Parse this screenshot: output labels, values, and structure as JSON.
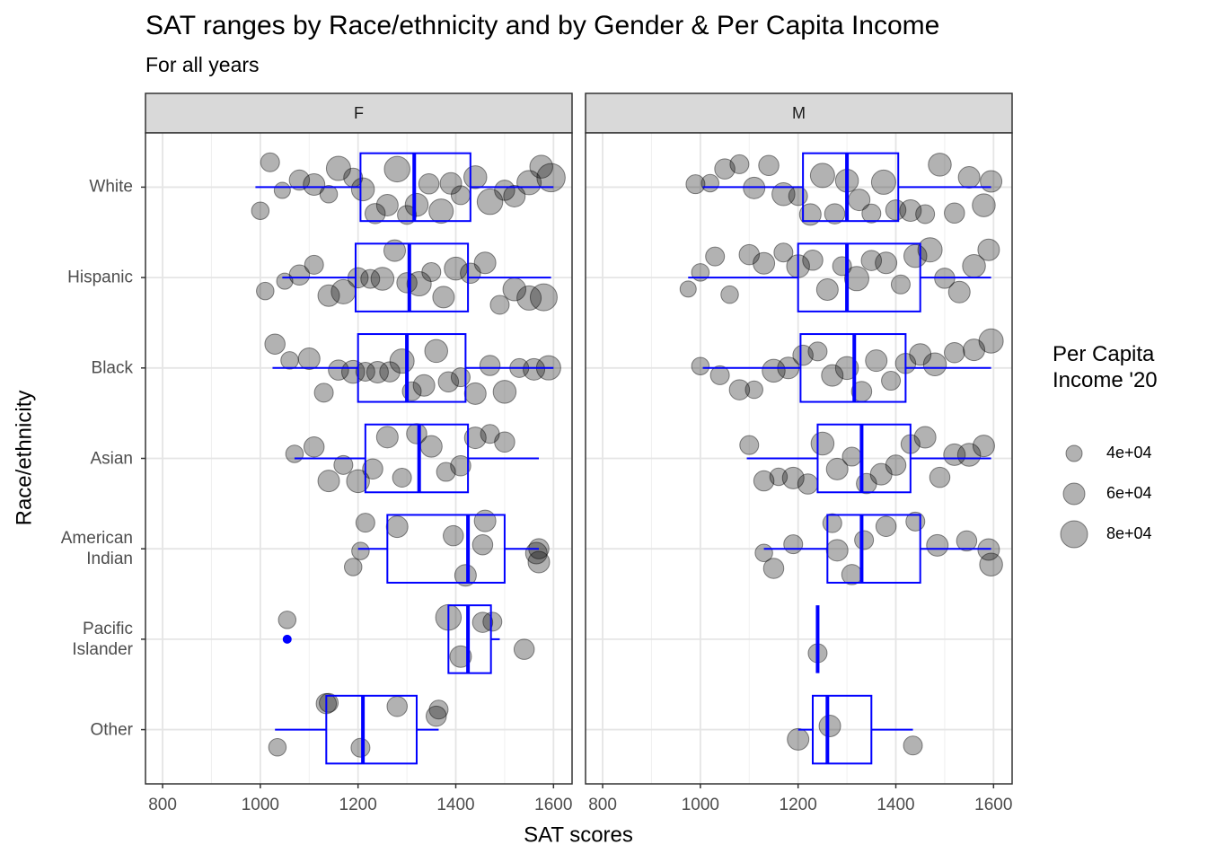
{
  "chart_data": {
    "type": "boxplot",
    "title": "SAT ranges by Race/ethnicity and by Gender & Per Capita Income",
    "subtitle": "For all years",
    "x_label": "SAT scores",
    "y_label": "Race/ethnicity",
    "categories": [
      "White",
      "Hispanic",
      "Black",
      "Asian",
      "American\nIndian",
      "Pacific\nIslander",
      "Other"
    ],
    "xlim": [
      765,
      1638
    ],
    "xticks": [
      800,
      1000,
      1200,
      1400,
      1600
    ],
    "xminor": [
      900,
      1100,
      1300,
      1500
    ],
    "grid": true,
    "box_color": "#0000ff",
    "point_color": "#000000",
    "size_legend_title": "Per Capita\nIncome '20",
    "size_ticks": [
      {
        "value": 40000,
        "label": "4e+04"
      },
      {
        "value": 60000,
        "label": "6e+04"
      },
      {
        "value": 80000,
        "label": "8e+04"
      }
    ],
    "facets": [
      {
        "name": "F",
        "boxes": [
          {
            "low": 990,
            "q1": 1205,
            "median": 1315,
            "q3": 1430,
            "high": 1600,
            "outliers": []
          },
          {
            "low": 1045,
            "q1": 1195,
            "median": 1305,
            "q3": 1425,
            "high": 1595,
            "outliers": []
          },
          {
            "low": 1025,
            "q1": 1200,
            "median": 1300,
            "q3": 1420,
            "high": 1600,
            "outliers": []
          },
          {
            "low": 1070,
            "q1": 1215,
            "median": 1325,
            "q3": 1425,
            "high": 1570,
            "outliers": []
          },
          {
            "low": 1200,
            "q1": 1260,
            "median": 1425,
            "q3": 1500,
            "high": 1570,
            "outliers": []
          },
          {
            "low": 1385,
            "q1": 1385,
            "median": 1425,
            "q3": 1472,
            "high": 1490,
            "outliers": [
              1055
            ]
          },
          {
            "low": 1030,
            "q1": 1135,
            "median": 1210,
            "q3": 1320,
            "high": 1365,
            "outliers": []
          }
        ],
        "points": [
          {
            "x": [
              1000,
              1020,
              1045,
              1080,
              1110,
              1140,
              1160,
              1190,
              1210,
              1235,
              1260,
              1280,
              1300,
              1320,
              1345,
              1370,
              1390,
              1410,
              1440,
              1470,
              1500,
              1520,
              1550,
              1575,
              1595
            ],
            "size": [
              45000,
              50000,
              40000,
              55000,
              60000,
              45000,
              70000,
              50000,
              65000,
              55000,
              60000,
              75000,
              50000,
              65000,
              55000,
              70000,
              60000,
              50000,
              65000,
              75000,
              55000,
              60000,
              70000,
              65000,
              85000
            ]
          },
          {
            "x": [
              1010,
              1050,
              1080,
              1110,
              1140,
              1170,
              1200,
              1225,
              1250,
              1275,
              1300,
              1325,
              1350,
              1375,
              1400,
              1430,
              1460,
              1490,
              1520,
              1550,
              1580
            ],
            "size": [
              45000,
              40000,
              55000,
              50000,
              60000,
              70000,
              55000,
              50000,
              65000,
              60000,
              55000,
              70000,
              50000,
              60000,
              65000,
              55000,
              60000,
              50000,
              65000,
              70000,
              80000
            ]
          },
          {
            "x": [
              1030,
              1060,
              1100,
              1130,
              1160,
              1190,
              1215,
              1240,
              1265,
              1290,
              1310,
              1335,
              1360,
              1385,
              1410,
              1440,
              1470,
              1500,
              1530,
              1560,
              1590
            ],
            "size": [
              55000,
              45000,
              60000,
              50000,
              55000,
              65000,
              50000,
              60000,
              55000,
              70000,
              50000,
              60000,
              65000,
              55000,
              50000,
              60000,
              55000,
              65000,
              50000,
              60000,
              70000
            ]
          },
          {
            "x": [
              1070,
              1110,
              1140,
              1170,
              1200,
              1230,
              1260,
              1290,
              1320,
              1350,
              1380,
              1410,
              1440,
              1470,
              1500
            ],
            "size": [
              45000,
              55000,
              60000,
              50000,
              65000,
              55000,
              60000,
              50000,
              55000,
              60000,
              50000,
              55000,
              60000,
              50000,
              55000
            ]
          },
          {
            "x": [
              1190,
              1205,
              1215,
              1280,
              1395,
              1420,
              1455,
              1460,
              1570,
              1565,
              1570
            ],
            "size": [
              45000,
              45000,
              50000,
              60000,
              55000,
              60000,
              55000,
              60000,
              55000,
              60000,
              60000
            ]
          },
          {
            "x": [
              1055,
              1385,
              1410,
              1455,
              1475,
              1540
            ],
            "size": [
              45000,
              75000,
              60000,
              55000,
              50000,
              55000
            ]
          },
          {
            "x": [
              1035,
              1135,
              1140,
              1205,
              1280,
              1360,
              1365
            ],
            "size": [
              45000,
              55000,
              50000,
              50000,
              55000,
              55000,
              50000
            ]
          }
        ]
      },
      {
        "name": "M",
        "boxes": [
          {
            "low": 1005,
            "q1": 1210,
            "median": 1300,
            "q3": 1405,
            "high": 1595,
            "outliers": []
          },
          {
            "low": 975,
            "q1": 1200,
            "median": 1300,
            "q3": 1450,
            "high": 1595,
            "outliers": []
          },
          {
            "low": 1005,
            "q1": 1205,
            "median": 1315,
            "q3": 1420,
            "high": 1595,
            "outliers": []
          },
          {
            "low": 1095,
            "q1": 1240,
            "median": 1330,
            "q3": 1430,
            "high": 1595,
            "outliers": []
          },
          {
            "low": 1130,
            "q1": 1260,
            "median": 1330,
            "q3": 1450,
            "high": 1595,
            "outliers": []
          },
          {
            "low": 1240,
            "q1": 1240,
            "median": 1240,
            "q3": 1240,
            "high": 1240,
            "outliers": []
          },
          {
            "low": 1200,
            "q1": 1230,
            "median": 1260,
            "q3": 1350,
            "high": 1435,
            "outliers": []
          }
        ],
        "points": [
          {
            "x": [
              990,
              1020,
              1050,
              1080,
              1110,
              1140,
              1170,
              1200,
              1225,
              1250,
              1275,
              1300,
              1325,
              1350,
              1375,
              1400,
              1430,
              1460,
              1490,
              1520,
              1550,
              1580,
              1595
            ],
            "size": [
              50000,
              45000,
              55000,
              50000,
              60000,
              55000,
              65000,
              50000,
              60000,
              70000,
              55000,
              65000,
              60000,
              50000,
              70000,
              55000,
              60000,
              50000,
              65000,
              55000,
              60000,
              65000,
              60000
            ]
          },
          {
            "x": [
              975,
              1000,
              1030,
              1060,
              1100,
              1130,
              1170,
              1200,
              1230,
              1260,
              1290,
              1320,
              1350,
              1380,
              1410,
              1440,
              1470,
              1500,
              1530,
              1560,
              1590
            ],
            "size": [
              40000,
              45000,
              50000,
              45000,
              55000,
              60000,
              50000,
              65000,
              55000,
              60000,
              50000,
              70000,
              55000,
              60000,
              50000,
              65000,
              70000,
              55000,
              60000,
              65000,
              60000
            ]
          },
          {
            "x": [
              1000,
              1040,
              1080,
              1110,
              1150,
              1180,
              1210,
              1240,
              1270,
              1300,
              1330,
              1360,
              1390,
              1420,
              1450,
              1480,
              1520,
              1560,
              1595
            ],
            "size": [
              45000,
              50000,
              55000,
              45000,
              65000,
              60000,
              55000,
              50000,
              60000,
              65000,
              55000,
              60000,
              50000,
              55000,
              60000,
              65000,
              55000,
              60000,
              70000
            ]
          },
          {
            "x": [
              1100,
              1130,
              1160,
              1190,
              1220,
              1250,
              1280,
              1310,
              1340,
              1370,
              1400,
              1430,
              1460,
              1490,
              1520,
              1550,
              1580
            ],
            "size": [
              50000,
              55000,
              45000,
              60000,
              55000,
              65000,
              60000,
              50000,
              55000,
              60000,
              55000,
              50000,
              60000,
              55000,
              60000,
              65000,
              60000
            ]
          },
          {
            "x": [
              1130,
              1150,
              1190,
              1270,
              1280,
              1310,
              1335,
              1380,
              1440,
              1485,
              1545,
              1590,
              1595
            ],
            "size": [
              45000,
              55000,
              50000,
              50000,
              60000,
              55000,
              50000,
              55000,
              50000,
              60000,
              55000,
              60000,
              65000
            ]
          },
          {
            "x": [
              1240
            ],
            "size": [
              50000
            ]
          },
          {
            "x": [
              1200,
              1265,
              1435
            ],
            "size": [
              60000,
              60000,
              50000
            ]
          }
        ]
      }
    ]
  }
}
